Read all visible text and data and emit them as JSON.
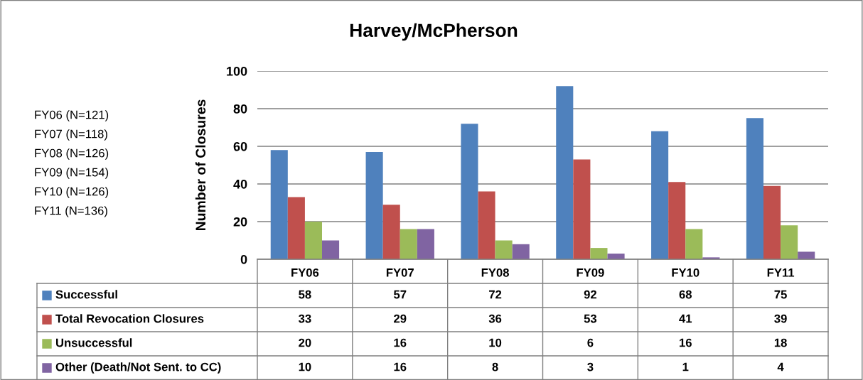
{
  "chart_data": {
    "type": "bar",
    "title": "Harvey/McPherson",
    "ylabel": "Number of Closures",
    "categories": [
      "FY06",
      "FY07",
      "FY08",
      "FY09",
      "FY10",
      "FY11"
    ],
    "series": [
      {
        "name": "Successful",
        "color": "#4f81bd",
        "values": [
          58,
          57,
          72,
          92,
          68,
          75
        ]
      },
      {
        "name": "Total Revocation Closures",
        "color": "#c0504d",
        "values": [
          33,
          29,
          36,
          53,
          41,
          39
        ]
      },
      {
        "name": "Unsuccessful",
        "color": "#9bbb59",
        "values": [
          20,
          16,
          10,
          6,
          16,
          18
        ]
      },
      {
        "name": "Other (Death/Not Sent. to CC)",
        "color": "#8064a2",
        "values": [
          10,
          16,
          8,
          3,
          1,
          4
        ]
      }
    ],
    "ylim": [
      0,
      100
    ],
    "yticks": [
      0,
      20,
      40,
      60,
      80,
      100
    ],
    "grid": "y",
    "data_labels": true,
    "legend": "bottom",
    "annotations": [
      "FY06 (N=121)",
      "FY07 (N=118)",
      "FY08 (N=126)",
      "FY09 (N=154)",
      "FY10 (N=126)",
      "FY11 (N=136)"
    ]
  }
}
